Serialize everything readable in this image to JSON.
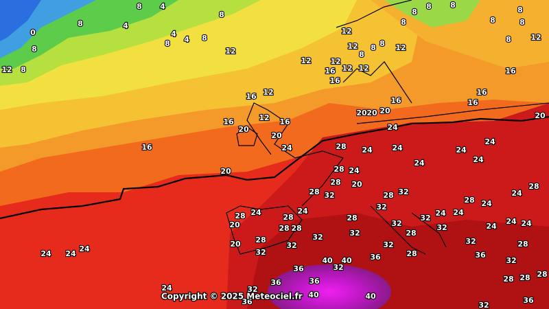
{
  "map": {
    "copyright": "Copyright © 2025 Meteociel.fr",
    "labels": [
      "8",
      "4",
      "8",
      "8",
      "4",
      "0",
      "8",
      "12",
      "8",
      "4",
      "4",
      "8",
      "8",
      "12",
      "12",
      "12",
      "12",
      "8",
      "12",
      "16",
      "12",
      "12",
      "16",
      "8",
      "8",
      "12",
      "8",
      "8",
      "8",
      "8",
      "8",
      "8",
      "8",
      "8",
      "12",
      "16",
      "16",
      "16",
      "16",
      "16",
      "12",
      "20",
      "20",
      "20",
      "24",
      "20",
      "16",
      "12",
      "16",
      "20",
      "20",
      "24",
      "16",
      "28",
      "24",
      "24",
      "24",
      "24",
      "24",
      "24",
      "20",
      "28",
      "24",
      "28",
      "28",
      "32",
      "20",
      "32",
      "28",
      "24",
      "28",
      "28",
      "24",
      "28",
      "24",
      "20",
      "28",
      "24",
      "28",
      "28",
      "28",
      "32",
      "32",
      "32",
      "24",
      "24",
      "24",
      "24",
      "24",
      "28",
      "32",
      "32",
      "32",
      "28",
      "32",
      "32",
      "20",
      "32",
      "28",
      "32",
      "24",
      "24",
      "24",
      "36",
      "40",
      "40",
      "32",
      "36",
      "28",
      "36",
      "32",
      "28",
      "28",
      "36",
      "36",
      "24",
      "32",
      "40",
      "28",
      "32",
      "36",
      "36",
      "40"
    ]
  }
}
